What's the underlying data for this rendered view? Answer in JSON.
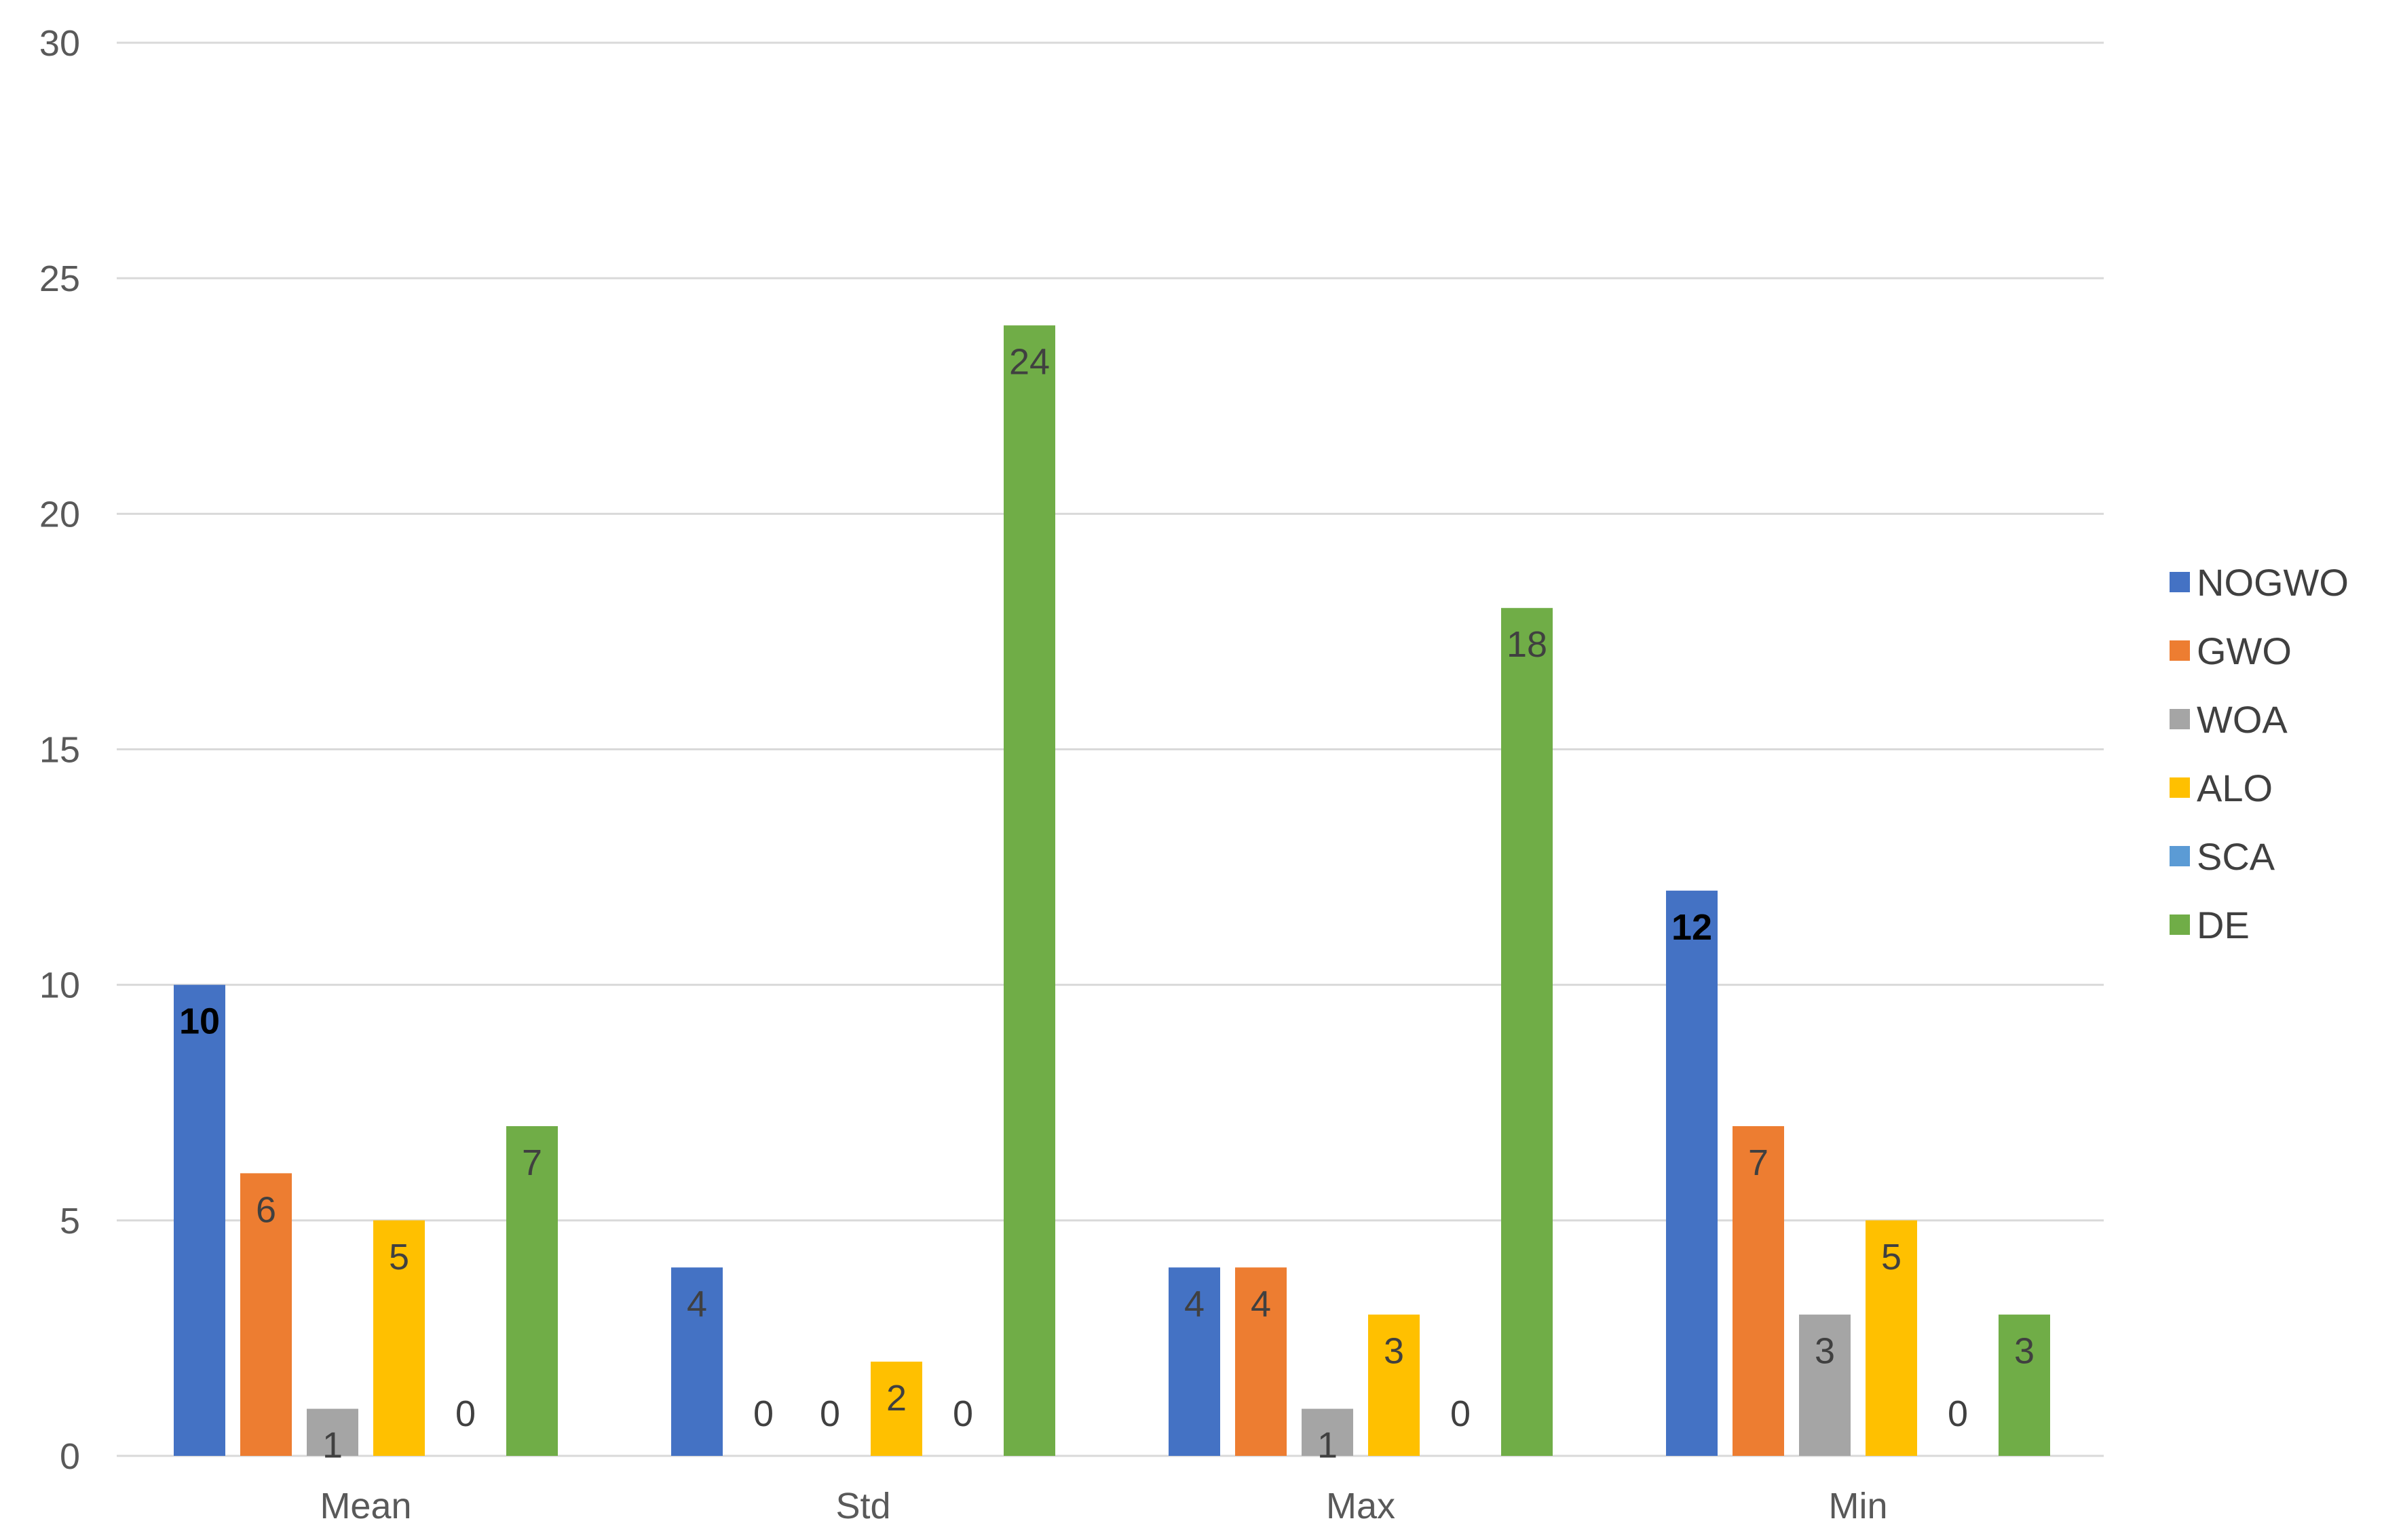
{
  "chart_data": {
    "type": "bar",
    "title": "",
    "xlabel": "",
    "ylabel": "",
    "ylim": [
      0,
      30
    ],
    "yticks": [
      0,
      5,
      10,
      15,
      20,
      25,
      30
    ],
    "grid": true,
    "legend_position": "right",
    "categories": [
      "Mean",
      "Std",
      "Max",
      "Min"
    ],
    "series": [
      {
        "name": "NOGWO",
        "color": "#4472C4",
        "values": [
          10,
          4,
          4,
          12
        ],
        "bold_labels": [
          true,
          false,
          false,
          true
        ]
      },
      {
        "name": "GWO",
        "color": "#ED7D31",
        "values": [
          6,
          0,
          4,
          7
        ]
      },
      {
        "name": "WOA",
        "color": "#A5A5A5",
        "values": [
          1,
          0,
          1,
          3
        ]
      },
      {
        "name": "ALO",
        "color": "#FFC000",
        "values": [
          5,
          2,
          3,
          5
        ]
      },
      {
        "name": "SCA",
        "color": "#5B9BD5",
        "values": [
          0,
          0,
          0,
          0
        ]
      },
      {
        "name": "DE",
        "color": "#70AD47",
        "values": [
          7,
          24,
          18,
          3
        ]
      }
    ]
  }
}
